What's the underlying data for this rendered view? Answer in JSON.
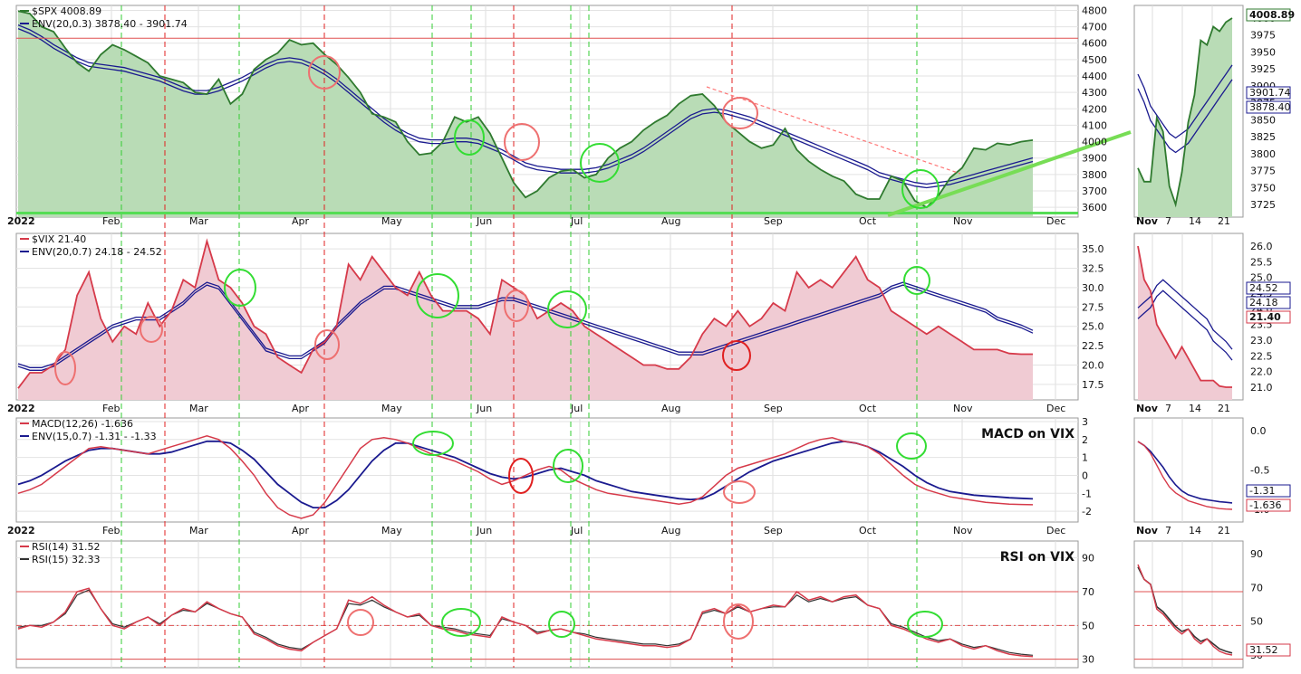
{
  "colors": {
    "green": "#2f7a2f",
    "greenFill": "#b9dcb6",
    "red": "#d63a4a",
    "redFill": "#f0cbd3",
    "blue": "#1a1a8f",
    "vgreen": "#33cc33",
    "vred": "#e02020",
    "hline": "#e05050",
    "circleGreen": "#33dd33",
    "circleRed": "#ee7070"
  },
  "months": [
    "Feb",
    "Mar",
    "Apr",
    "May",
    "Jun",
    "Jul",
    "Aug",
    "Sep",
    "Oct",
    "Nov",
    "Dec"
  ],
  "year": "2022",
  "zoom_ticks": [
    "Nov",
    "7",
    "14",
    "21"
  ],
  "chart_data": [
    {
      "type": "area",
      "panel": "spx",
      "legend": [
        {
          "label": "$SPX 4008.89",
          "color": "#2f7a2f"
        },
        {
          "label": "ENV(20,0.3) 3878.40 - 3901.74",
          "color": "#1a1a8f"
        }
      ],
      "ylim": [
        3540,
        4830
      ],
      "y_ticks": [
        "3600",
        "3700",
        "3800",
        "3900",
        "4000",
        "4100",
        "4200",
        "4300",
        "4400",
        "4500",
        "4600",
        "4700",
        "4800"
      ],
      "zoom_y_ticks": [
        "3725",
        "3750",
        "3775",
        "3800",
        "3825",
        "3850",
        "3875",
        "3900",
        "3925",
        "3950",
        "3975",
        "4000"
      ],
      "zoom_labels": [
        "4008.89",
        "3901.74",
        "3878.40"
      ],
      "series": [
        {
          "values": [
            4796,
            4780,
            4700,
            4670,
            4570,
            4480,
            4430,
            4530,
            4590,
            4560,
            4520,
            4480,
            4400,
            4380,
            4360,
            4300,
            4290,
            4380,
            4230,
            4290,
            4440,
            4500,
            4540,
            4620,
            4590,
            4600,
            4530,
            4470,
            4390,
            4300,
            4170,
            4150,
            4120,
            4000,
            3920,
            3930,
            4000,
            4150,
            4120,
            4150,
            4050,
            3900,
            3750,
            3660,
            3700,
            3780,
            3820,
            3830,
            3780,
            3800,
            3900,
            3960,
            4000,
            4070,
            4120,
            4160,
            4230,
            4280,
            4290,
            4220,
            4120,
            4060,
            4000,
            3960,
            3980,
            4080,
            3950,
            3880,
            3830,
            3790,
            3760,
            3680,
            3650,
            3650,
            3790,
            3760,
            3640,
            3600,
            3670,
            3780,
            3840,
            3960,
            3950,
            3990,
            3980,
            4000,
            4008.89
          ]
        },
        {
          "values": [
            4700,
            4670,
            4630,
            4580,
            4540,
            4500,
            4470,
            4460,
            4450,
            4440,
            4420,
            4400,
            4380,
            4350,
            4320,
            4300,
            4300,
            4320,
            4350,
            4380,
            4420,
            4460,
            4490,
            4500,
            4490,
            4460,
            4420,
            4370,
            4310,
            4250,
            4190,
            4130,
            4080,
            4040,
            4010,
            4000,
            4000,
            4010,
            4010,
            4000,
            3970,
            3940,
            3900,
            3860,
            3840,
            3830,
            3820,
            3820,
            3820,
            3830,
            3850,
            3880,
            3910,
            3950,
            4000,
            4050,
            4100,
            4150,
            4180,
            4190,
            4180,
            4160,
            4140,
            4110,
            4080,
            4050,
            4020,
            3990,
            3960,
            3930,
            3900,
            3870,
            3840,
            3800,
            3780,
            3760,
            3740,
            3730,
            3740,
            3750,
            3770,
            3790,
            3810,
            3830,
            3850,
            3870,
            3890
          ]
        }
      ]
    },
    {
      "type": "area",
      "panel": "vix",
      "legend": [
        {
          "label": "$VIX 21.40",
          "color": "#d63a4a"
        },
        {
          "label": "ENV(20,0.7) 24.18 - 24.52",
          "color": "#1a1a8f"
        }
      ],
      "ylim": [
        15.5,
        37
      ],
      "y_ticks": [
        "17.5",
        "20.0",
        "22.5",
        "25.0",
        "27.5",
        "30.0",
        "32.5",
        "35.0"
      ],
      "zoom_y_ticks": [
        "21.0",
        "22.0",
        "22.5",
        "23.0",
        "23.5",
        "24.0",
        "24.5",
        "25.0",
        "25.5",
        "26.0"
      ],
      "zoom_labels": [
        "24.52",
        "24.18",
        "21.40"
      ],
      "series": [
        {
          "values": [
            17,
            19,
            19,
            20,
            22,
            29,
            32,
            26,
            23,
            25,
            24,
            28,
            25,
            27,
            31,
            30,
            36,
            31,
            30,
            28,
            25,
            24,
            21,
            20,
            19,
            22,
            23,
            25,
            33,
            31,
            34,
            32,
            30,
            29,
            32,
            29,
            27,
            27,
            27,
            26,
            24,
            31,
            30,
            29,
            26,
            27,
            28,
            27,
            25,
            24,
            23,
            22,
            21,
            20,
            20,
            19.5,
            19.5,
            21,
            24,
            26,
            25,
            27,
            25,
            26,
            28,
            27,
            32,
            30,
            31,
            30,
            32,
            34,
            31,
            30,
            27,
            26,
            25,
            24,
            25,
            24,
            23,
            22,
            22,
            22,
            21.5,
            21.4,
            21.4
          ]
        },
        {
          "values": [
            20,
            19.5,
            19.5,
            20,
            21,
            22,
            23,
            24,
            25,
            25.5,
            26,
            26,
            26,
            27,
            28,
            29.5,
            30.5,
            30,
            28,
            26,
            24,
            22,
            21.5,
            21,
            21,
            22,
            23,
            25,
            26.5,
            28,
            29,
            30,
            30,
            29.5,
            29,
            28.5,
            28,
            27.5,
            27.5,
            27.5,
            28,
            28.5,
            28.5,
            28,
            27.5,
            27,
            26.5,
            26,
            25.5,
            25,
            24.5,
            24,
            23.5,
            23,
            22.5,
            22,
            21.5,
            21.5,
            21.5,
            22,
            22.5,
            23,
            23.5,
            24,
            24.5,
            25,
            25.5,
            26,
            26.5,
            27,
            27.5,
            28,
            28.5,
            29,
            30,
            30.5,
            30,
            29.5,
            29,
            28.5,
            28,
            27.5,
            27,
            26,
            25.5,
            25,
            24.3
          ]
        }
      ]
    },
    {
      "type": "line",
      "panel": "macd",
      "title": "MACD on VIX",
      "legend": [
        {
          "label": "MACD(12,26) -1.636",
          "color": "#d63a4a"
        },
        {
          "label": "ENV(15,0.7) -1.31 - -1.33",
          "color": "#1a1a8f"
        }
      ],
      "ylim": [
        -2.6,
        3.2
      ],
      "y_ticks": [
        "-2",
        "-1",
        "0",
        "1",
        "2",
        "3"
      ],
      "zoom_y_ticks": [
        "-1.0",
        "-0.5",
        "0.0"
      ],
      "zoom_labels": [
        "-1.31",
        "-1.636"
      ],
      "series": [
        {
          "values": [
            -1,
            -0.8,
            -0.5,
            0,
            0.5,
            1,
            1.5,
            1.6,
            1.5,
            1.4,
            1.3,
            1.2,
            1.4,
            1.6,
            1.8,
            2,
            2.2,
            2,
            1.5,
            0.8,
            0,
            -1,
            -1.8,
            -2.2,
            -2.4,
            -2.2,
            -1.5,
            -0.5,
            0.5,
            1.5,
            2,
            2.1,
            2,
            1.8,
            1.5,
            1.2,
            1,
            0.8,
            0.5,
            0.2,
            -0.2,
            -0.5,
            -0.3,
            0,
            0.3,
            0.5,
            0.3,
            -0.2,
            -0.5,
            -0.8,
            -1,
            -1.1,
            -1.2,
            -1.3,
            -1.4,
            -1.5,
            -1.6,
            -1.5,
            -1.2,
            -0.6,
            0,
            0.4,
            0.6,
            0.8,
            1,
            1.2,
            1.5,
            1.8,
            2,
            2.1,
            1.9,
            1.8,
            1.6,
            1.2,
            0.6,
            0,
            -0.5,
            -0.8,
            -1,
            -1.2,
            -1.3,
            -1.4,
            -1.5,
            -1.55,
            -1.6,
            -1.62,
            -1.636
          ]
        },
        {
          "values": [
            -0.5,
            -0.3,
            0,
            0.4,
            0.8,
            1.1,
            1.4,
            1.5,
            1.5,
            1.4,
            1.3,
            1.2,
            1.2,
            1.3,
            1.5,
            1.7,
            1.9,
            1.9,
            1.8,
            1.4,
            0.9,
            0.2,
            -0.5,
            -1,
            -1.5,
            -1.8,
            -1.8,
            -1.4,
            -0.8,
            0,
            0.8,
            1.4,
            1.8,
            1.8,
            1.6,
            1.4,
            1.2,
            1,
            0.7,
            0.4,
            0.1,
            -0.1,
            -0.2,
            -0.1,
            0.1,
            0.3,
            0.4,
            0.2,
            0,
            -0.3,
            -0.5,
            -0.7,
            -0.9,
            -1,
            -1.1,
            -1.2,
            -1.3,
            -1.35,
            -1.3,
            -1,
            -0.6,
            -0.2,
            0.2,
            0.5,
            0.8,
            1,
            1.2,
            1.4,
            1.6,
            1.8,
            1.9,
            1.8,
            1.6,
            1.3,
            0.9,
            0.5,
            0,
            -0.4,
            -0.7,
            -0.9,
            -1,
            -1.1,
            -1.15,
            -1.2,
            -1.25,
            -1.28,
            -1.31
          ]
        }
      ]
    },
    {
      "type": "line",
      "panel": "rsi",
      "title": "RSI on VIX",
      "legend": [
        {
          "label": "RSI(14) 31.52",
          "color": "#d63a4a"
        },
        {
          "label": "RSI(15) 32.33",
          "color": "#333333"
        }
      ],
      "ylim": [
        25,
        100
      ],
      "y_ticks": [
        "30",
        "50",
        "70",
        "90"
      ],
      "zoom_y_ticks": [
        "30",
        "50",
        "70",
        "90"
      ],
      "zoom_labels": [
        "31.52"
      ],
      "series": [
        {
          "values": [
            48,
            50,
            49,
            52,
            58,
            70,
            72,
            60,
            50,
            48,
            52,
            55,
            50,
            56,
            60,
            58,
            64,
            60,
            57,
            55,
            45,
            42,
            38,
            36,
            35,
            40,
            44,
            48,
            65,
            63,
            67,
            62,
            58,
            55,
            57,
            50,
            48,
            47,
            45,
            44,
            43,
            55,
            52,
            50,
            45,
            47,
            48,
            46,
            44,
            42,
            41,
            40,
            39,
            38,
            38,
            37,
            38,
            42,
            58,
            60,
            57,
            62,
            58,
            60,
            62,
            61,
            70,
            65,
            67,
            64,
            67,
            68,
            62,
            60,
            50,
            48,
            45,
            42,
            40,
            42,
            38,
            36,
            38,
            35,
            33,
            32,
            31.52
          ]
        },
        {
          "values": [
            49,
            50,
            50,
            52,
            57,
            68,
            71,
            60,
            51,
            49,
            52,
            55,
            51,
            56,
            59,
            58,
            63,
            60,
            57,
            55,
            46,
            43,
            39,
            37,
            36,
            40,
            44,
            48,
            63,
            62,
            65,
            61,
            58,
            55,
            56,
            50,
            49,
            48,
            46,
            45,
            44,
            54,
            52,
            50,
            46,
            47,
            48,
            46,
            45,
            43,
            42,
            41,
            40,
            39,
            39,
            38,
            39,
            42,
            57,
            59,
            57,
            61,
            58,
            60,
            61,
            61,
            68,
            64,
            66,
            64,
            66,
            67,
            62,
            60,
            51,
            49,
            46,
            43,
            41,
            42,
            39,
            37,
            38,
            36,
            34,
            33,
            32.33
          ]
        }
      ]
    }
  ]
}
